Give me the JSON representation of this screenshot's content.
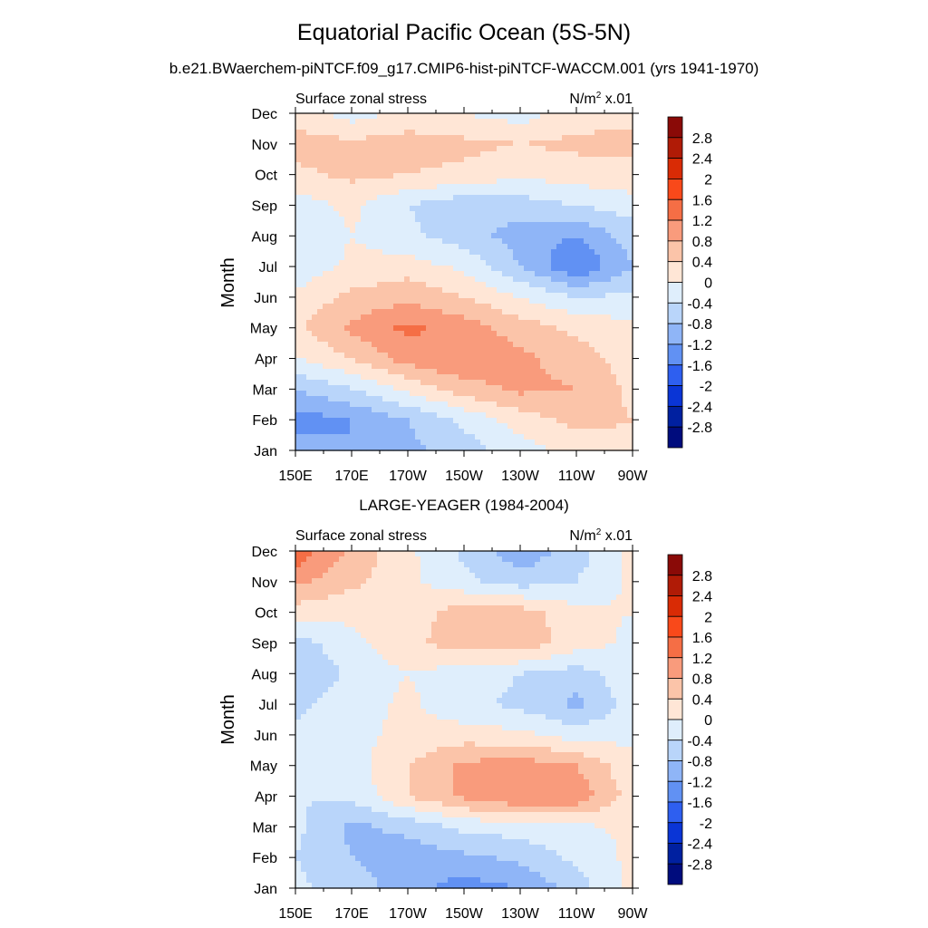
{
  "page": {
    "title": "Equatorial Pacific Ocean (5S-5N)",
    "subtitle": "b.e21.BWaerchem-piNTCF.f09_g17.CMIP6-hist-piNTCF-WACCM.001 (yrs 1941-1970)"
  },
  "chart_data": [
    {
      "type": "heatmap",
      "panel_title": "",
      "left_label": "Surface zonal stress",
      "right_label_base": "N/m",
      "right_label_sup": "2",
      "right_label_tail": " x.01",
      "ylabel": "Month",
      "x_tick_labels": [
        "150E",
        "170E",
        "170W",
        "150W",
        "130W",
        "110W",
        "90W"
      ],
      "x_tick_values": [
        150,
        170,
        190,
        210,
        230,
        250,
        270
      ],
      "xlim": [
        150,
        270
      ],
      "y_tick_labels": [
        "Jan",
        "Feb",
        "Mar",
        "Apr",
        "May",
        "Jun",
        "Jul",
        "Aug",
        "Sep",
        "Oct",
        "Nov",
        "Dec"
      ],
      "ylim": [
        1,
        12
      ],
      "colorbar_labels": [
        "2.8",
        "2.4",
        "2",
        "1.6",
        "1.2",
        "0.8",
        "0.4",
        "0",
        "-0.4",
        "-0.8",
        "-1.2",
        "-1.6",
        "-2",
        "-2.4",
        "-2.8"
      ],
      "colors": [
        "#8a0a07",
        "#b01b06",
        "#d92b05",
        "#f9491a",
        "#f56e45",
        "#f99b7c",
        "#fbc4a9",
        "#ffe6d6",
        "#dfeefc",
        "#b9d5fa",
        "#8fb5f7",
        "#6191f3",
        "#2e5ff0",
        "#0a35d6",
        "#0020a0",
        "#000c7d"
      ],
      "approx_field": {
        "x": [
          150,
          170,
          190,
          210,
          230,
          250,
          270
        ],
        "months": [
          "Jan",
          "Feb",
          "Mar",
          "Apr",
          "May",
          "Jun",
          "Jul",
          "Aug",
          "Sep",
          "Oct",
          "Nov",
          "Dec"
        ],
        "values": [
          [
            -1.0,
            -1.2,
            -0.9,
            -0.6,
            -0.2,
            0.2,
            0.3
          ],
          [
            -1.4,
            -1.2,
            -0.8,
            -0.3,
            0.2,
            0.5,
            0.4
          ],
          [
            -0.8,
            -0.4,
            0.1,
            0.6,
            0.9,
            0.8,
            0.3
          ],
          [
            0.0,
            0.4,
            1.0,
            1.2,
            0.9,
            0.6,
            0.2
          ],
          [
            0.3,
            0.9,
            1.3,
            1.0,
            0.6,
            0.3,
            0.1
          ],
          [
            0.1,
            0.5,
            0.7,
            0.4,
            0.0,
            -0.4,
            -0.3
          ],
          [
            -0.3,
            0.1,
            0.2,
            -0.1,
            -0.8,
            -1.6,
            -0.8
          ],
          [
            -0.4,
            0.0,
            -0.3,
            -0.6,
            -1.0,
            -1.2,
            -0.6
          ],
          [
            -0.2,
            0.1,
            -0.4,
            -0.7,
            -0.6,
            -0.4,
            -0.2
          ],
          [
            0.3,
            0.5,
            0.4,
            0.3,
            0.1,
            0.2,
            0.3
          ],
          [
            0.6,
            0.5,
            0.6,
            0.5,
            0.4,
            0.5,
            0.5
          ],
          [
            0.2,
            -0.2,
            0.1,
            0.0,
            -0.2,
            0.2,
            0.3
          ]
        ]
      }
    },
    {
      "type": "heatmap",
      "panel_title": "LARGE-YEAGER (1984-2004)",
      "left_label": "Surface zonal stress",
      "right_label_base": "N/m",
      "right_label_sup": "2",
      "right_label_tail": " x.01",
      "ylabel": "Month",
      "x_tick_labels": [
        "150E",
        "170E",
        "170W",
        "150W",
        "130W",
        "110W",
        "90W"
      ],
      "x_tick_values": [
        150,
        170,
        190,
        210,
        230,
        250,
        270
      ],
      "xlim": [
        150,
        270
      ],
      "y_tick_labels": [
        "Jan",
        "Feb",
        "Mar",
        "Apr",
        "May",
        "Jun",
        "Jul",
        "Aug",
        "Sep",
        "Oct",
        "Nov",
        "Dec"
      ],
      "ylim": [
        1,
        12
      ],
      "colorbar_labels": [
        "2.8",
        "2.4",
        "2",
        "1.6",
        "1.2",
        "0.8",
        "0.4",
        "0",
        "-0.4",
        "-0.8",
        "-1.2",
        "-1.6",
        "-2",
        "-2.4",
        "-2.8"
      ],
      "colors": [
        "#8a0a07",
        "#b01b06",
        "#d92b05",
        "#f9491a",
        "#f56e45",
        "#f99b7c",
        "#fbc4a9",
        "#ffe6d6",
        "#dfeefc",
        "#b9d5fa",
        "#8fb5f7",
        "#6191f3",
        "#2e5ff0",
        "#0a35d6",
        "#0020a0",
        "#000c7d"
      ],
      "approx_field": {
        "x": [
          150,
          170,
          190,
          210,
          230,
          250,
          270
        ],
        "months": [
          "Jan",
          "Feb",
          "Mar",
          "Apr",
          "May",
          "Jun",
          "Jul",
          "Aug",
          "Sep",
          "Oct",
          "Nov",
          "Dec"
        ],
        "values": [
          [
            -0.3,
            -0.6,
            -1.0,
            -1.4,
            -1.2,
            -0.6,
            0.1
          ],
          [
            -0.4,
            -0.8,
            -1.0,
            -0.9,
            -0.7,
            -0.3,
            0.1
          ],
          [
            -0.3,
            -0.9,
            -0.7,
            -0.3,
            -0.2,
            -0.1,
            0.1
          ],
          [
            -0.4,
            -0.3,
            0.4,
            0.9,
            1.2,
            1.1,
            0.2
          ],
          [
            -0.3,
            -0.2,
            0.4,
            0.9,
            1.0,
            0.8,
            0.1
          ],
          [
            -0.3,
            -0.1,
            0.1,
            0.2,
            0.1,
            -0.2,
            -0.1
          ],
          [
            -0.5,
            -0.2,
            0.1,
            -0.3,
            -0.5,
            -0.9,
            -0.2
          ],
          [
            -0.8,
            -0.3,
            0.0,
            -0.2,
            -0.4,
            -0.6,
            -0.1
          ],
          [
            -0.6,
            -0.1,
            0.3,
            0.6,
            0.7,
            0.2,
            -0.1
          ],
          [
            0.2,
            0.1,
            0.2,
            0.6,
            0.6,
            0.1,
            0.0
          ],
          [
            0.9,
            0.5,
            0.1,
            -0.3,
            -0.6,
            -0.4,
            0.1
          ],
          [
            1.5,
            0.7,
            0.1,
            -0.5,
            -1.1,
            -0.6,
            0.1
          ]
        ]
      }
    }
  ]
}
